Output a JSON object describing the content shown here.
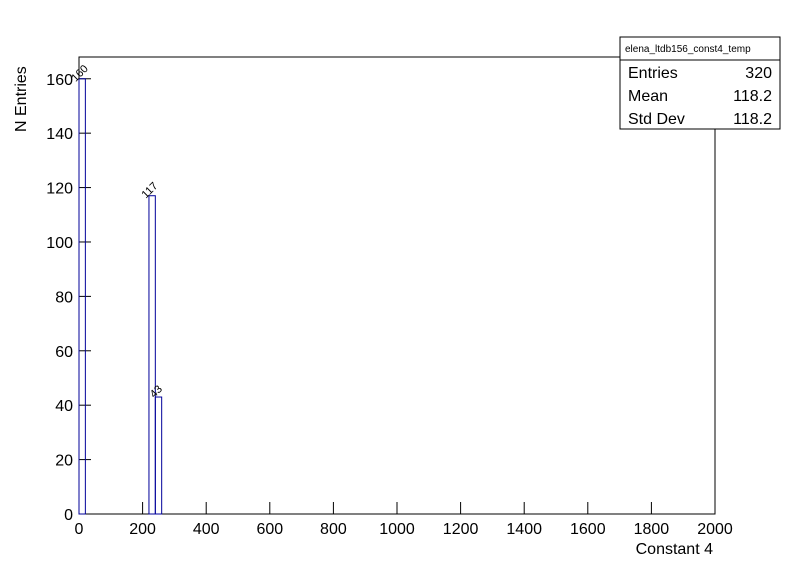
{
  "chart_data": {
    "type": "histogram",
    "xlabel": "Constant 4",
    "ylabel": "N Entries",
    "bins": [
      0,
      20,
      40,
      60,
      80,
      100,
      120,
      140,
      160,
      180,
      200,
      220,
      240,
      260,
      280,
      300,
      320,
      340,
      360,
      380,
      400,
      420,
      440,
      460,
      480,
      500,
      520,
      540,
      560,
      580,
      600,
      620,
      640,
      660,
      680,
      700,
      720,
      740,
      760,
      780,
      800,
      820,
      840,
      860,
      880,
      900,
      920,
      940,
      960,
      980,
      1000,
      1020,
      1040,
      1060,
      1080,
      1100,
      1120,
      1140,
      1160,
      1180,
      1200,
      1220,
      1240,
      1260,
      1280,
      1300,
      1320,
      1340,
      1360,
      1380,
      1400,
      1420,
      1440,
      1460,
      1480,
      1500,
      1520,
      1540,
      1560,
      1580,
      1600,
      1620,
      1640,
      1660,
      1680,
      1700,
      1720,
      1740,
      1760,
      1780,
      1800,
      1820,
      1840,
      1860,
      1880,
      1900,
      1920,
      1940,
      1960,
      1980,
      2000
    ],
    "counts": [
      160,
      0,
      0,
      0,
      0,
      0,
      0,
      0,
      0,
      0,
      0,
      117,
      43,
      0,
      0,
      0,
      0,
      0,
      0,
      0,
      0,
      0,
      0,
      0,
      0,
      0,
      0,
      0,
      0,
      0,
      0,
      0,
      0,
      0,
      0,
      0,
      0,
      0,
      0,
      0,
      0,
      0,
      0,
      0,
      0,
      0,
      0,
      0,
      0,
      0,
      0,
      0,
      0,
      0,
      0,
      0,
      0,
      0,
      0,
      0,
      0,
      0,
      0,
      0,
      0,
      0,
      0,
      0,
      0,
      0,
      0,
      0,
      0,
      0,
      0,
      0,
      0,
      0,
      0,
      0,
      0,
      0,
      0,
      0,
      0,
      0,
      0,
      0,
      0,
      0,
      0,
      0,
      0,
      0,
      0,
      0,
      0,
      0,
      0,
      0
    ],
    "color": "#000099",
    "xlim": [
      0,
      2000
    ],
    "xticks": [
      0,
      200,
      400,
      600,
      800,
      1000,
      1200,
      1400,
      1600,
      1800,
      2000
    ],
    "ylim": [
      0,
      168
    ],
    "yticks": [
      0,
      20,
      40,
      60,
      80,
      100,
      120,
      140,
      160
    ],
    "stats": {
      "title": "elena_ltdb156_const4_temp",
      "rows": [
        {
          "label": "Entries",
          "value": 320
        },
        {
          "label": "Mean",
          "value": 118.2
        },
        {
          "label": "Std Dev",
          "value": 118.2
        }
      ]
    }
  }
}
